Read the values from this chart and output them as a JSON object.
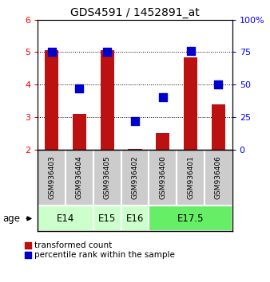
{
  "title": "GDS4591 / 1452891_at",
  "samples": [
    "GSM936403",
    "GSM936404",
    "GSM936405",
    "GSM936402",
    "GSM936400",
    "GSM936401",
    "GSM936406"
  ],
  "red_values": [
    5.05,
    3.1,
    5.05,
    2.02,
    2.5,
    4.85,
    3.38
  ],
  "blue_values": [
    75,
    47,
    75,
    22,
    40,
    76,
    50
  ],
  "ylim_left": [
    2,
    6
  ],
  "ylim_right": [
    0,
    100
  ],
  "yticks_left": [
    2,
    3,
    4,
    5,
    6
  ],
  "yticks_right": [
    0,
    25,
    50,
    75,
    100
  ],
  "age_groups": [
    {
      "label": "E14",
      "start": 0,
      "end": 2,
      "color": "#ccffcc"
    },
    {
      "label": "E15",
      "start": 2,
      "end": 3,
      "color": "#ccffcc"
    },
    {
      "label": "E16",
      "start": 3,
      "end": 4,
      "color": "#ccffcc"
    },
    {
      "label": "E17.5",
      "start": 4,
      "end": 7,
      "color": "#66ee66"
    }
  ],
  "bar_color": "#bb1111",
  "dot_color": "#0000cc",
  "bar_width": 0.5,
  "dot_size": 45,
  "legend_red_label": "transformed count",
  "legend_blue_label": "percentile rank within the sample",
  "age_label": "age",
  "sample_box_color": "#cccccc",
  "grid_yticks": [
    3,
    4,
    5
  ]
}
